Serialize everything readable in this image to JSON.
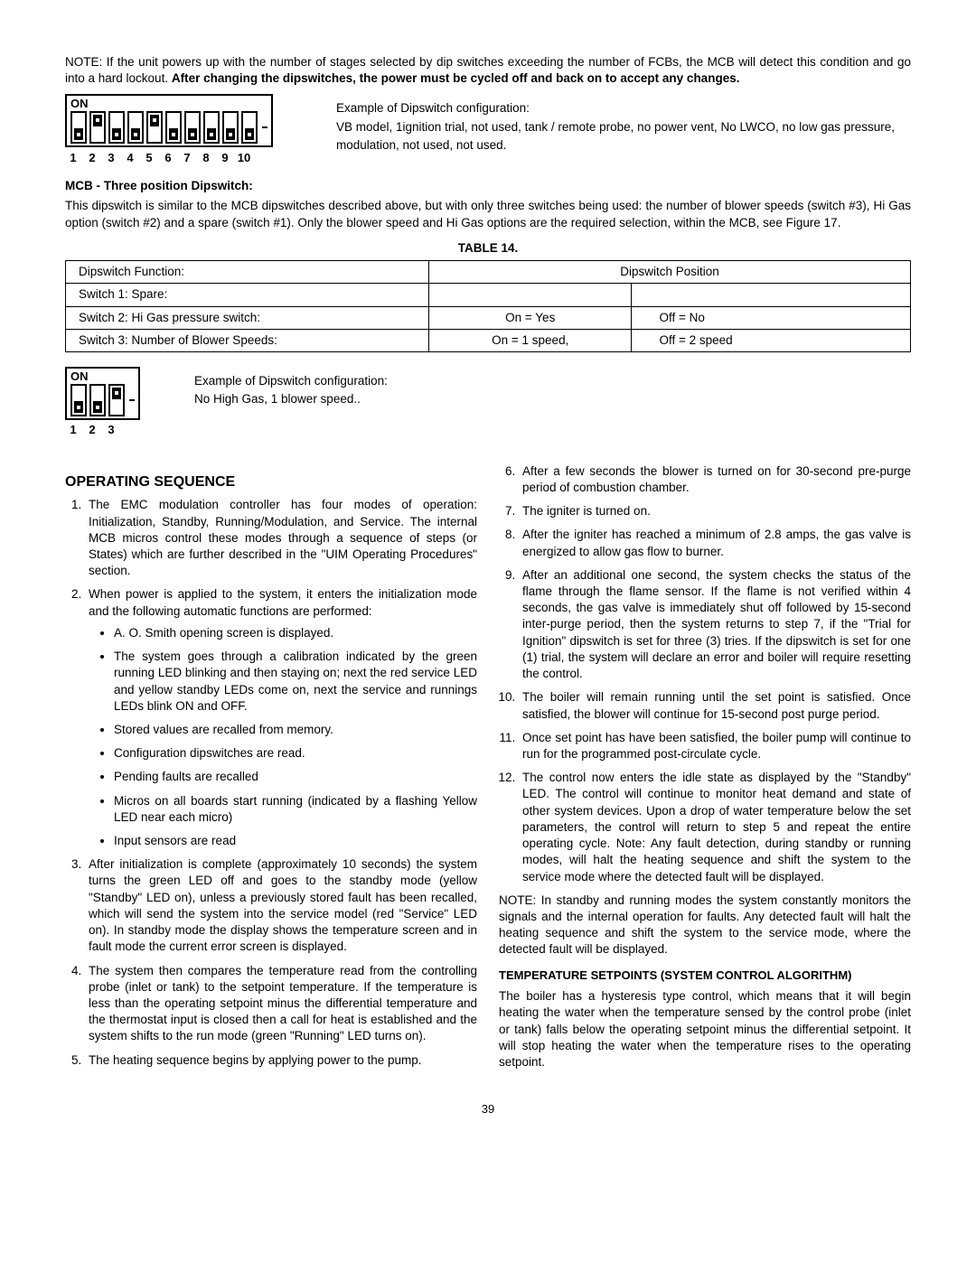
{
  "note": {
    "prefix": "NOTE: If the unit powers up with the number of stages selected by dip switches exceeding the number of FCBs, the MCB will detect this condition and go into a hard lockout. ",
    "bold": "After changing the dipswitches, the power must be cycled off and back on to accept any changes."
  },
  "dip10": {
    "on_label": "ON",
    "positions": [
      "down",
      "up",
      "down",
      "down",
      "up",
      "down",
      "down",
      "down",
      "down",
      "down"
    ],
    "numbers": [
      "1",
      "2",
      "3",
      "4",
      "5",
      "6",
      "7",
      "8",
      "9",
      "10"
    ],
    "example_line1": "Example of Dipswitch configuration:",
    "example_line2": "VB model, 1ignition trial, not used, tank / remote probe, no power vent, No LWCO, no low gas pressure, modulation, not used, not used."
  },
  "mcb_head": "MCB - Three position Dipswitch:",
  "mcb_para": "This dipswitch is similar to the MCB dipswitches described above, but with only three switches being used: the number of blower speeds (switch #3), Hi Gas option (switch #2) and a spare (switch #1).  Only the blower speed and Hi Gas options are the required selection, within the MCB, see Figure 17.",
  "table14": {
    "title": "TABLE 14.",
    "headers": {
      "func": "Dipswitch Function:",
      "pos": "Dipswitch Position"
    },
    "rows": [
      {
        "func": "Switch 1: Spare:",
        "on": "",
        "off": ""
      },
      {
        "func": "Switch 2: Hi Gas pressure switch:",
        "on": "On  =  Yes",
        "off": "Off  =     No"
      },
      {
        "func": "Switch 3: Number of Blower Speeds:",
        "on": "On  =  1 speed,",
        "off": "Off  =     2 speed"
      }
    ]
  },
  "dip3": {
    "on_label": "ON",
    "positions": [
      "down",
      "down",
      "up"
    ],
    "numbers": [
      "1",
      "2",
      "3"
    ],
    "example_line1": "Example of Dipswitch configuration:",
    "example_line2": "No High Gas, 1 blower speed.."
  },
  "opseq": {
    "title": "OPERATING SEQUENCE",
    "left_list": [
      "The EMC modulation controller has four modes of operation: Initialization, Standby, Running/Modulation, and Service. The internal MCB  micros control these modes through a sequence of steps (or States) which are further described in the \"UIM Operating Procedures\" section.",
      "When power is applied to the system, it enters the initialization mode and the following automatic functions are performed:",
      "After initialization is complete (approximately 10 seconds) the system turns the green LED off and goes to the standby mode (yellow \"Standby\" LED on), unless a previously stored fault has been recalled, which will send the system into the service model (red \"Service\" LED on).   In standby mode the display shows the temperature screen and in fault mode the current error screen is displayed.",
      "The system then compares the temperature read from the controlling probe (inlet or tank) to the setpoint temperature.  If the temperature is less than the operating setpoint minus the differential temperature and the thermostat input is closed then a call for heat is established and the system shifts to the run mode (green \"Running\" LED turns on).",
      "The heating sequence begins by applying power to the pump."
    ],
    "sub_bullets": [
      "A. O. Smith opening screen is displayed.",
      "The system goes through a calibration indicated by the green running LED blinking and then staying on; next the red service LED and yellow standby LEDs come on, next the service and runnings LEDs blink ON and OFF.",
      "Stored values are recalled from memory.",
      "Configuration dipswitches are read.",
      "Pending faults are recalled",
      "Micros on all boards start running (indicated by a flashing Yellow LED near each micro)",
      "Input sensors are read"
    ],
    "right_list": [
      "After a few seconds the blower is turned on for 30-second pre-purge period of combustion chamber.",
      "The  igniter is turned on.",
      "After the igniter has reached a minimum of 2.8 amps, the gas valve is energized to allow gas flow to burner.",
      "After an additional one second, the system checks the status of the flame through the flame sensor. If the flame is not verified within 4 seconds, the gas valve is immediately shut off followed by 15-second inter-purge period, then the system returns to step 7, if the \"Trial for Ignition\" dipswitch is set for three (3) tries. If the dipswitch is set for one (1) trial, the system will declare an error and boiler will require resetting the control.",
      "The boiler will remain running until the set point is satisfied. Once satisfied, the blower will continue for 15-second post purge period.",
      "Once set point has have been satisfied, the boiler pump will continue to run for the programmed post-circulate cycle.",
      "The control now enters the idle state as displayed by the \"Standby\" LED. The control will continue to monitor heat demand and state of other system devices. Upon a drop of water temperature below the set parameters, the control will return to step 5 and repeat the entire operating cycle. Note: Any fault detection, during standby or running modes, will halt the heating sequence and shift the system to the service mode where the detected fault will be displayed."
    ],
    "right_note": "NOTE: In standby and running modes the system constantly monitors the signals and the internal operation for faults. Any detected fault will halt the heating sequence and shift the system to the service mode, where the detected fault will be displayed.",
    "algo_head": "TEMPERATURE SETPOINTS (SYSTEM CONTROL ALGORITHM)",
    "algo_para": "The boiler has a hysteresis type control, which means that it will begin heating the water when the temperature sensed by the control probe (inlet or tank) falls below the operating setpoint minus the differential setpoint.  It will stop heating the water when the temperature rises to the operating setpoint."
  },
  "pagenum": "39"
}
